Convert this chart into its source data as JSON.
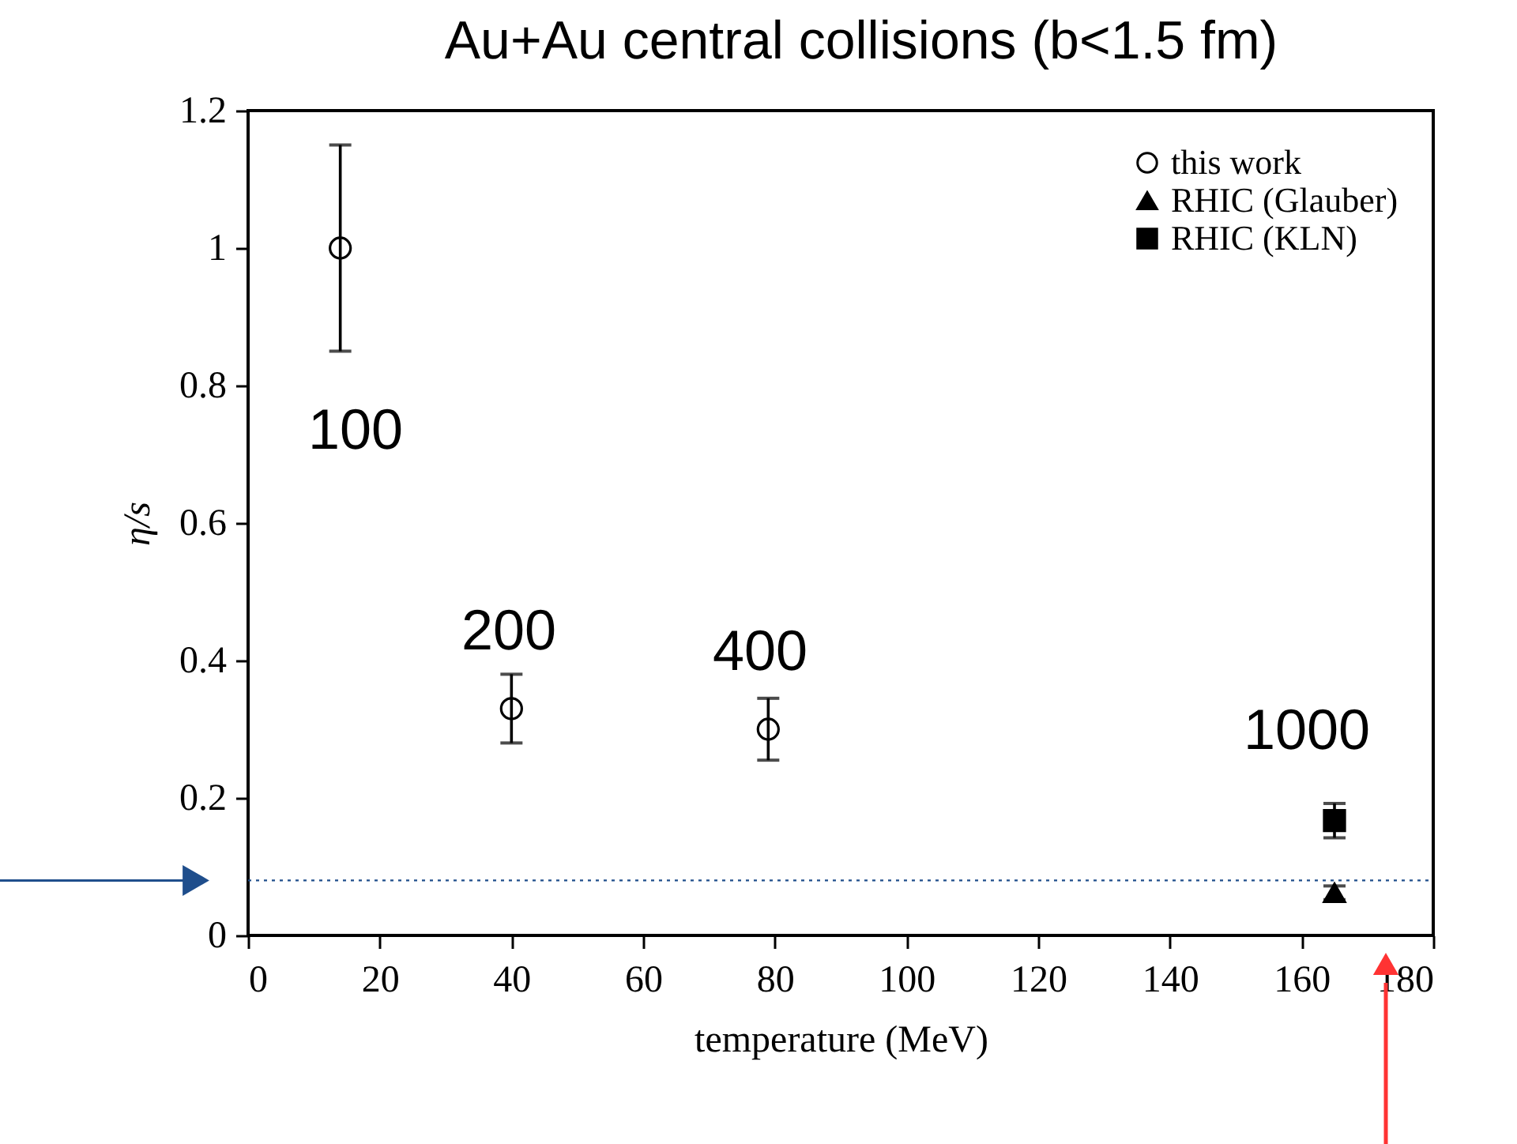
{
  "chart_data": {
    "type": "scatter",
    "title": "Au+Au central collisions (b<1.5 fm)",
    "xlabel": "temperature (MeV)",
    "ylabel": "η/s",
    "xlim": [
      0,
      180
    ],
    "xticks": [
      0,
      20,
      40,
      60,
      80,
      100,
      120,
      140,
      160,
      180
    ],
    "ylim": [
      0,
      1.2
    ],
    "yticks": [
      0,
      0.2,
      0.4,
      0.6,
      0.8,
      1,
      1.2
    ],
    "grid": false,
    "legend": "top right",
    "series": [
      {
        "name": "this work",
        "color": "#000000",
        "marker": "circle",
        "x": [
          14,
          40,
          79
        ],
        "values": [
          1.0,
          0.33,
          0.3
        ],
        "errors": [
          0.15,
          0.05,
          0.045
        ]
      },
      {
        "name": "RHIC (Glauber)",
        "color": "#000000",
        "marker": "triangle",
        "x": [
          165
        ],
        "values": [
          0.062
        ],
        "errors": [
          0.01
        ]
      },
      {
        "name": "RHIC (KLN)",
        "color": "#000000",
        "marker": "square",
        "x": [
          165
        ],
        "values": [
          0.167
        ],
        "errors": [
          0.025
        ]
      }
    ],
    "ref_lines": [
      {
        "axis": "y",
        "value": 0.08,
        "color": "#1f4e8c",
        "line_style": "dotted"
      }
    ],
    "annotations": [
      "100",
      "200",
      "400",
      "1000"
    ]
  }
}
